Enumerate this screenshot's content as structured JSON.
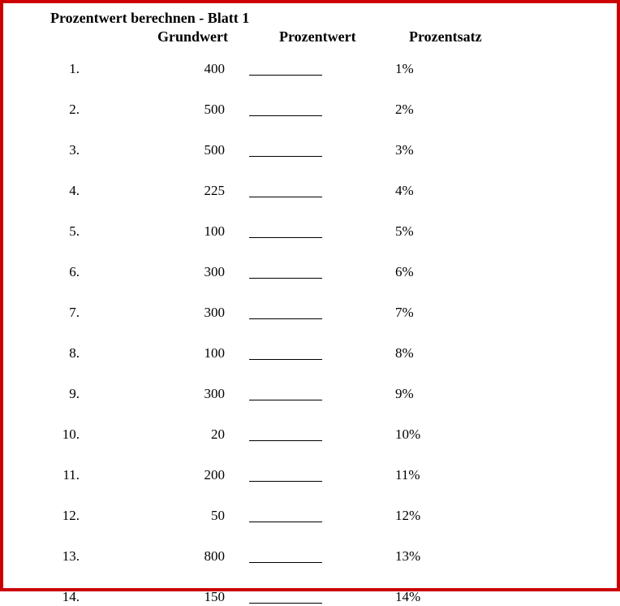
{
  "title": "Prozentwert berechnen - Blatt 1",
  "headers": {
    "grundwert": "Grundwert",
    "prozentwert": "Prozentwert",
    "prozentsatz": "Prozentsatz"
  },
  "rows": [
    {
      "num": "1.",
      "grundwert": "400",
      "prozentsatz": "1%"
    },
    {
      "num": "2.",
      "grundwert": "500",
      "prozentsatz": "2%"
    },
    {
      "num": "3.",
      "grundwert": "500",
      "prozentsatz": "3%"
    },
    {
      "num": "4.",
      "grundwert": "225",
      "prozentsatz": "4%"
    },
    {
      "num": "5.",
      "grundwert": "100",
      "prozentsatz": "5%"
    },
    {
      "num": "6.",
      "grundwert": "300",
      "prozentsatz": "6%"
    },
    {
      "num": "7.",
      "grundwert": "300",
      "prozentsatz": "7%"
    },
    {
      "num": "8.",
      "grundwert": "100",
      "prozentsatz": "8%"
    },
    {
      "num": "9.",
      "grundwert": "300",
      "prozentsatz": "9%"
    },
    {
      "num": "10.",
      "grundwert": "20",
      "prozentsatz": "10%"
    },
    {
      "num": "11.",
      "grundwert": "200",
      "prozentsatz": "11%"
    },
    {
      "num": "12.",
      "grundwert": "50",
      "prozentsatz": "12%"
    },
    {
      "num": "13.",
      "grundwert": "800",
      "prozentsatz": "13%"
    },
    {
      "num": "14.",
      "grundwert": "150",
      "prozentsatz": "14%"
    }
  ],
  "colors": {
    "border": "#cc0000",
    "background": "#ffffff",
    "text": "#000000"
  }
}
